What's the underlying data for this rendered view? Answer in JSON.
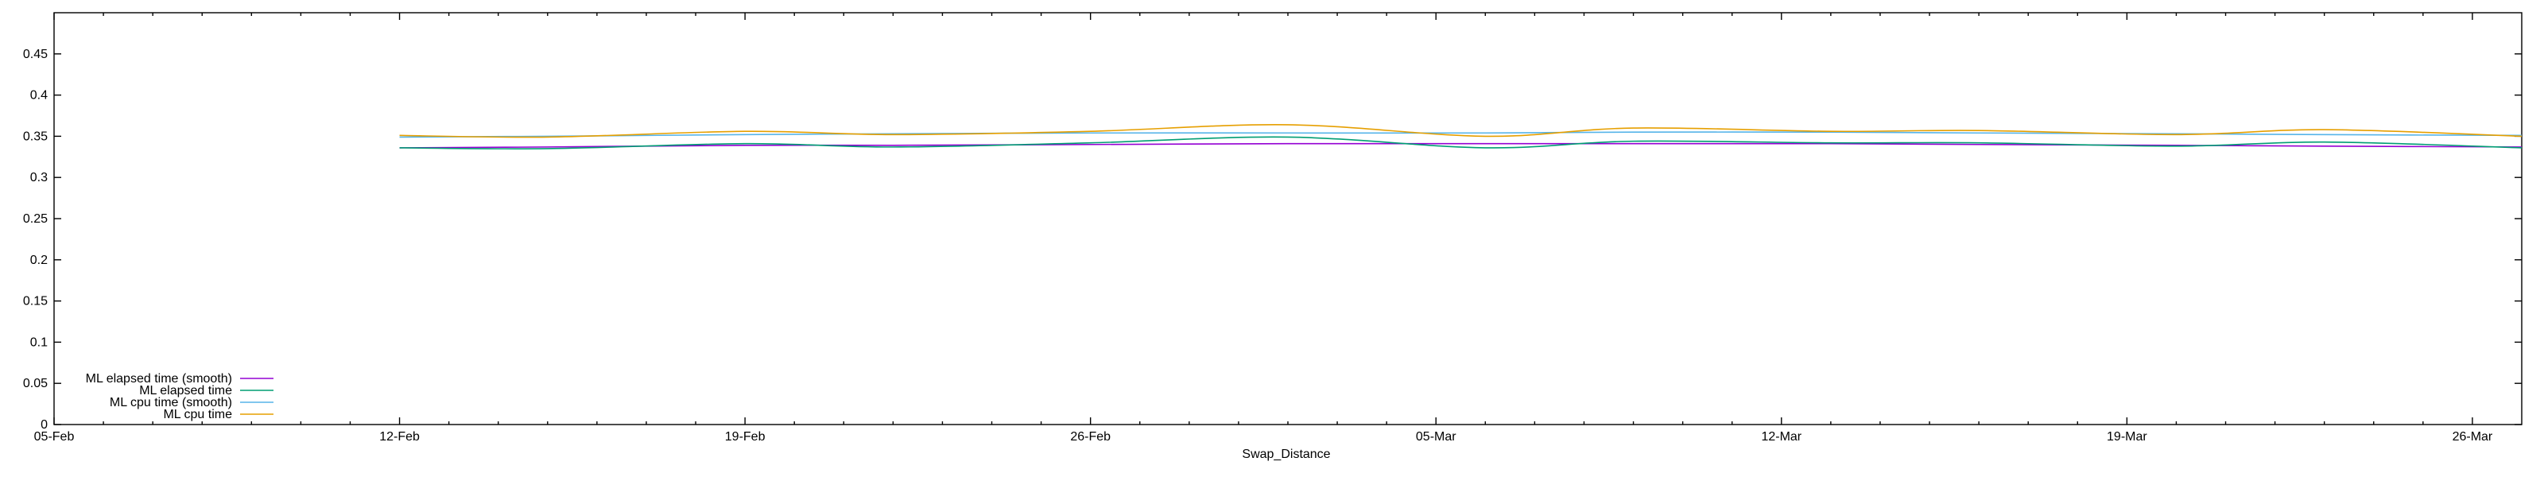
{
  "chart_data": {
    "type": "line",
    "title": "",
    "xlabel": "Swap_Distance",
    "ylabel": "",
    "xlim": [
      "2024-02-05",
      "2024-03-26"
    ],
    "ylim": [
      0,
      0.5
    ],
    "x_ticks": [
      "05-Feb",
      "12-Feb",
      "19-Feb",
      "26-Feb",
      "05-Mar",
      "12-Mar",
      "19-Mar",
      "26-Mar"
    ],
    "y_ticks": [
      "0",
      "0.05",
      "0.1",
      "0.15",
      "0.2",
      "0.25",
      "0.3",
      "0.35",
      "0.4",
      "0.45"
    ],
    "grid": false,
    "legend_position": "bottom-left",
    "x": [
      "2024-02-12",
      "2024-02-15",
      "2024-02-19",
      "2024-02-22",
      "2024-02-26",
      "2024-03-01",
      "2024-03-05",
      "2024-03-08",
      "2024-03-12",
      "2024-03-15",
      "2024-03-19",
      "2024-03-22",
      "2024-03-26"
    ],
    "series": [
      {
        "name": "ML elapsed time (smooth)",
        "color": "#9400d3",
        "values": [
          0.336,
          0.337,
          0.339,
          0.339,
          0.34,
          0.341,
          0.341,
          0.341,
          0.341,
          0.34,
          0.339,
          0.338,
          0.337
        ]
      },
      {
        "name": "ML elapsed time",
        "color": "#009e73",
        "values": [
          0.336,
          0.335,
          0.341,
          0.337,
          0.342,
          0.349,
          0.336,
          0.344,
          0.342,
          0.342,
          0.338,
          0.343,
          0.336
        ]
      },
      {
        "name": "ML cpu time (smooth)",
        "color": "#56b4e9",
        "values": [
          0.349,
          0.35,
          0.352,
          0.353,
          0.354,
          0.354,
          0.354,
          0.355,
          0.355,
          0.354,
          0.353,
          0.352,
          0.351
        ]
      },
      {
        "name": "ML cpu time",
        "color": "#e69f00",
        "values": [
          0.351,
          0.349,
          0.356,
          0.352,
          0.356,
          0.364,
          0.35,
          0.36,
          0.356,
          0.357,
          0.352,
          0.358,
          0.35
        ]
      }
    ]
  }
}
